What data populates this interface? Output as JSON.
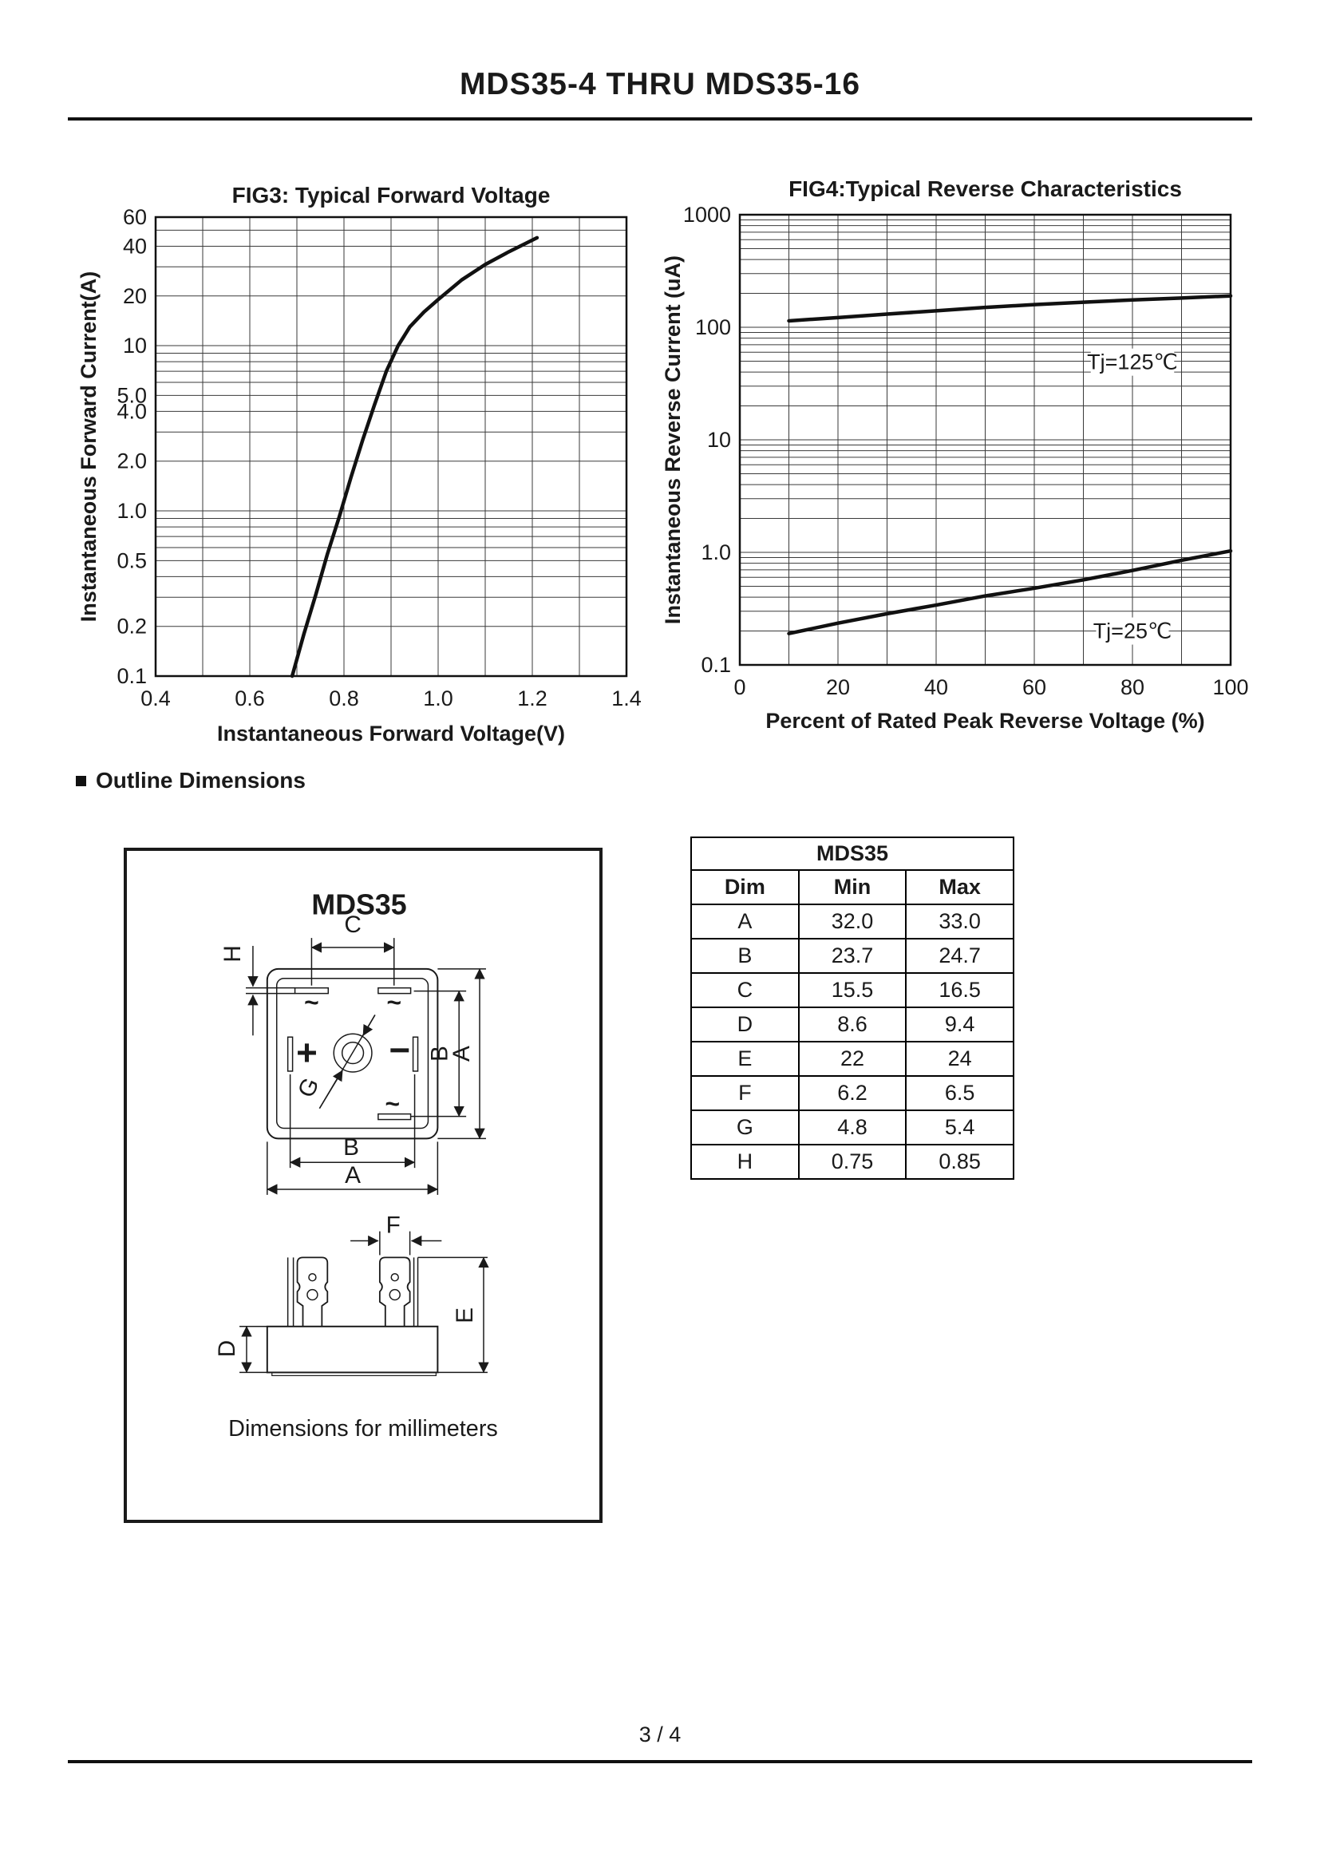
{
  "page": {
    "title": "MDS35-4 THRU MDS35-16",
    "section_heading": "Outline Dimensions",
    "footer": "3 / 4"
  },
  "chart_data": [
    {
      "id": "fig3",
      "type": "line",
      "title": "FIG3: Typical Forward Voltage",
      "xlabel": "Instantaneous Forward Voltage(V)",
      "ylabel": "Instantaneous Forward Current(A)",
      "xscale": "linear",
      "yscale": "log",
      "xlim": [
        0.4,
        1.4
      ],
      "ylim": [
        0.1,
        60
      ],
      "grid": true,
      "x_grid_step": 0.1,
      "x_ticks": [
        {
          "v": 0.4,
          "label": "0.4"
        },
        {
          "v": 0.6,
          "label": "0.6"
        },
        {
          "v": 0.8,
          "label": "0.8"
        },
        {
          "v": 1.0,
          "label": "1.0"
        },
        {
          "v": 1.2,
          "label": "1.2"
        },
        {
          "v": 1.4,
          "label": "1.4"
        }
      ],
      "y_ticks": [
        {
          "v": 60,
          "label": "60"
        },
        {
          "v": 40,
          "label": "40"
        },
        {
          "v": 20,
          "label": "20"
        },
        {
          "v": 10,
          "label": "10"
        },
        {
          "v": 5,
          "label": "5.0"
        },
        {
          "v": 4,
          "label": "4.0"
        },
        {
          "v": 2,
          "label": "2.0"
        },
        {
          "v": 1,
          "label": "1.0"
        },
        {
          "v": 0.5,
          "label": "0.5"
        },
        {
          "v": 0.2,
          "label": "0.2"
        },
        {
          "v": 0.1,
          "label": "0.1"
        }
      ],
      "series": [
        {
          "name": "typical forward voltage",
          "points": [
            [
              0.69,
              0.1
            ],
            [
              0.715,
              0.18
            ],
            [
              0.74,
              0.31
            ],
            [
              0.765,
              0.55
            ],
            [
              0.79,
              0.92
            ],
            [
              0.815,
              1.6
            ],
            [
              0.84,
              2.7
            ],
            [
              0.865,
              4.4
            ],
            [
              0.89,
              7.0
            ],
            [
              0.915,
              10
            ],
            [
              0.94,
              13
            ],
            [
              0.97,
              16
            ],
            [
              1.0,
              19
            ],
            [
              1.05,
              25
            ],
            [
              1.1,
              31
            ],
            [
              1.15,
              37
            ],
            [
              1.21,
              45
            ]
          ]
        }
      ],
      "annotations": []
    },
    {
      "id": "fig4",
      "type": "line",
      "title": "FIG4:Typical Reverse Characteristics",
      "xlabel": "Percent of Rated Peak Reverse Voltage (%)",
      "ylabel": "Instantaneous Reverse Current (uA)",
      "xscale": "linear",
      "yscale": "log",
      "xlim": [
        0,
        100
      ],
      "ylim": [
        0.1,
        1000
      ],
      "grid": true,
      "x_grid_step": 10,
      "x_ticks": [
        {
          "v": 0,
          "label": "0"
        },
        {
          "v": 20,
          "label": "20"
        },
        {
          "v": 40,
          "label": "40"
        },
        {
          "v": 60,
          "label": "60"
        },
        {
          "v": 80,
          "label": "80"
        },
        {
          "v": 100,
          "label": "100"
        }
      ],
      "y_ticks": [
        {
          "v": 1000,
          "label": "1000"
        },
        {
          "v": 100,
          "label": "100"
        },
        {
          "v": 10,
          "label": "10"
        },
        {
          "v": 1,
          "label": "1.0"
        },
        {
          "v": 0.1,
          "label": "0.1"
        }
      ],
      "series": [
        {
          "name": "Tj=125℃",
          "points": [
            [
              10,
              114
            ],
            [
              20,
              122
            ],
            [
              30,
              131
            ],
            [
              40,
              140
            ],
            [
              50,
              150
            ],
            [
              60,
              159
            ],
            [
              70,
              167
            ],
            [
              80,
              175
            ],
            [
              90,
              182
            ],
            [
              100,
              190
            ]
          ]
        },
        {
          "name": "Tj=25℃",
          "points": [
            [
              10,
              0.19
            ],
            [
              20,
              0.235
            ],
            [
              30,
              0.285
            ],
            [
              40,
              0.34
            ],
            [
              50,
              0.41
            ],
            [
              60,
              0.48
            ],
            [
              70,
              0.57
            ],
            [
              80,
              0.69
            ],
            [
              90,
              0.85
            ],
            [
              100,
              1.03
            ]
          ]
        }
      ],
      "annotations": [
        {
          "text": "Tj=125℃",
          "x": 80,
          "y": 49
        },
        {
          "text": "Tj=25℃",
          "x": 80,
          "y": 0.2
        }
      ]
    }
  ],
  "outline": {
    "title": "MDS35",
    "caption": "Dimensions for millimeters",
    "labels": {
      "a": "A",
      "b": "B",
      "c": "C",
      "d": "D",
      "e": "E",
      "f": "F",
      "g": "G",
      "h": "H",
      "plus": "+",
      "minus": "−",
      "ac": "~"
    }
  },
  "dim_table": {
    "title": "MDS35",
    "headers": [
      "Dim",
      "Min",
      "Max"
    ],
    "rows": [
      [
        "A",
        "32.0",
        "33.0"
      ],
      [
        "B",
        "23.7",
        "24.7"
      ],
      [
        "C",
        "15.5",
        "16.5"
      ],
      [
        "D",
        "8.6",
        "9.4"
      ],
      [
        "E",
        "22",
        "24"
      ],
      [
        "F",
        "6.2",
        "6.5"
      ],
      [
        "G",
        "4.8",
        "5.4"
      ],
      [
        "H",
        "0.75",
        "0.85"
      ]
    ]
  }
}
